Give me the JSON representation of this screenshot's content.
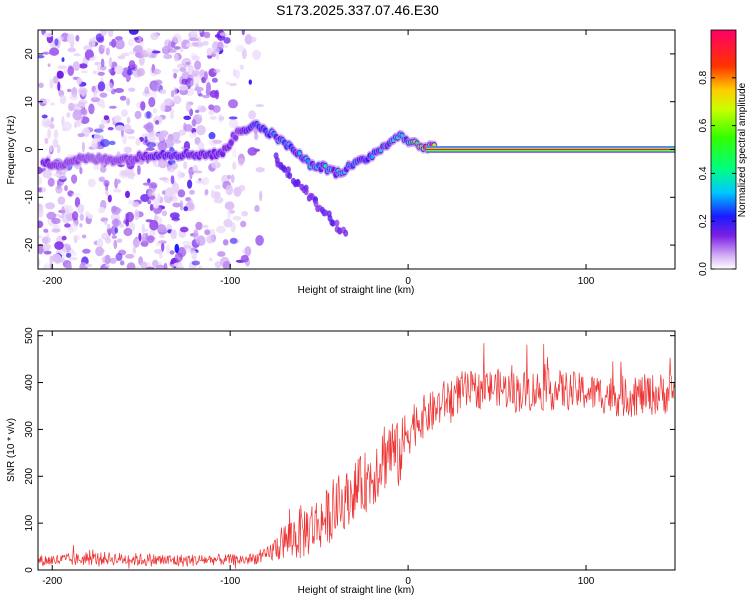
{
  "title": "S173.2025.337.07.46.E30",
  "chart_data": [
    {
      "type": "heatmap",
      "xlabel": "Height of straight line (km)",
      "ylabel": "Frequency (Hz)",
      "xlim": [
        -208,
        150
      ],
      "ylim": [
        -25,
        25
      ],
      "xticks": [
        -200,
        -100,
        0,
        100
      ],
      "xtick_labels": [
        "-200",
        "-100",
        "0",
        "100"
      ],
      "yticks": [
        -20,
        -10,
        0,
        10,
        20
      ],
      "ytick_labels": [
        "-20",
        "-10",
        "0",
        "10",
        "20"
      ],
      "colorbar": {
        "label": "Normalized spectral amplitude",
        "range": [
          0,
          1
        ],
        "ticks": [
          0.0,
          0.2,
          0.4,
          0.6,
          0.8
        ],
        "tick_labels": [
          "0.0",
          "0.2",
          "0.4",
          "0.6",
          "0.8"
        ],
        "colormap": "rainbow"
      },
      "ridge": {
        "x": [
          -205,
          -195,
          -185,
          -175,
          -165,
          -155,
          -145,
          -135,
          -125,
          -115,
          -105,
          -95,
          -85,
          -75,
          -65,
          -55,
          -45,
          -40,
          -35,
          -30,
          -25,
          -20,
          -15,
          -10,
          -5,
          0,
          5,
          10,
          15
        ],
        "frequency": [
          -3,
          -3,
          -2,
          -2,
          -2,
          -2,
          -1,
          -1,
          -1,
          -1,
          -1,
          4,
          5,
          3,
          0,
          -3,
          -4,
          -5,
          -4,
          -3,
          -2,
          -1,
          0,
          2,
          3,
          2,
          1,
          0.5,
          0.5
        ],
        "amplitude": [
          0.15,
          0.12,
          0.12,
          0.1,
          0.12,
          0.12,
          0.15,
          0.18,
          0.15,
          0.15,
          0.15,
          0.12,
          0.25,
          0.3,
          0.3,
          0.3,
          0.35,
          0.35,
          0.3,
          0.25,
          0.25,
          0.3,
          0.35,
          0.4,
          0.4,
          0.5,
          0.6,
          0.8,
          0.9
        ]
      },
      "carrier_line": {
        "x_start": 10,
        "x_end": 150,
        "frequency": 0,
        "amplitude": 0.95
      },
      "noise_region": {
        "x_start": -208,
        "x_end": -80,
        "amplitude": 0.1
      }
    },
    {
      "type": "line",
      "xlabel": "Height of straight line (km)",
      "ylabel": "SNR (10 * v/v)",
      "xlim": [
        -208,
        150
      ],
      "ylim": [
        0,
        510
      ],
      "xticks": [
        -200,
        -100,
        0,
        100
      ],
      "xtick_labels": [
        "-200",
        "-100",
        "0",
        "100"
      ],
      "yticks": [
        0,
        100,
        200,
        300,
        400,
        500
      ],
      "ytick_labels": [
        "0",
        "100",
        "200",
        "300",
        "400",
        "500"
      ],
      "series": [
        {
          "name": "SNR",
          "color": "#ee3333",
          "x": [
            -208,
            -190,
            -170,
            -150,
            -130,
            -110,
            -90,
            -80,
            -70,
            -60,
            -50,
            -40,
            -30,
            -20,
            -15,
            -10,
            -5,
            0,
            5,
            10,
            15,
            20,
            25,
            30,
            40,
            50,
            60,
            80,
            100,
            120,
            140,
            150
          ],
          "values": [
            20,
            22,
            25,
            22,
            20,
            22,
            22,
            30,
            60,
            80,
            100,
            130,
            170,
            200,
            240,
            260,
            240,
            300,
            320,
            330,
            340,
            360,
            370,
            380,
            385,
            390,
            380,
            385,
            380,
            370,
            375,
            380
          ],
          "noise_amplitude": [
            12,
            14,
            14,
            14,
            14,
            12,
            12,
            15,
            40,
            60,
            60,
            60,
            60,
            70,
            80,
            80,
            70,
            60,
            50,
            45,
            45,
            45,
            45,
            45,
            40,
            40,
            45,
            45,
            40,
            45,
            45,
            45
          ]
        }
      ]
    }
  ]
}
